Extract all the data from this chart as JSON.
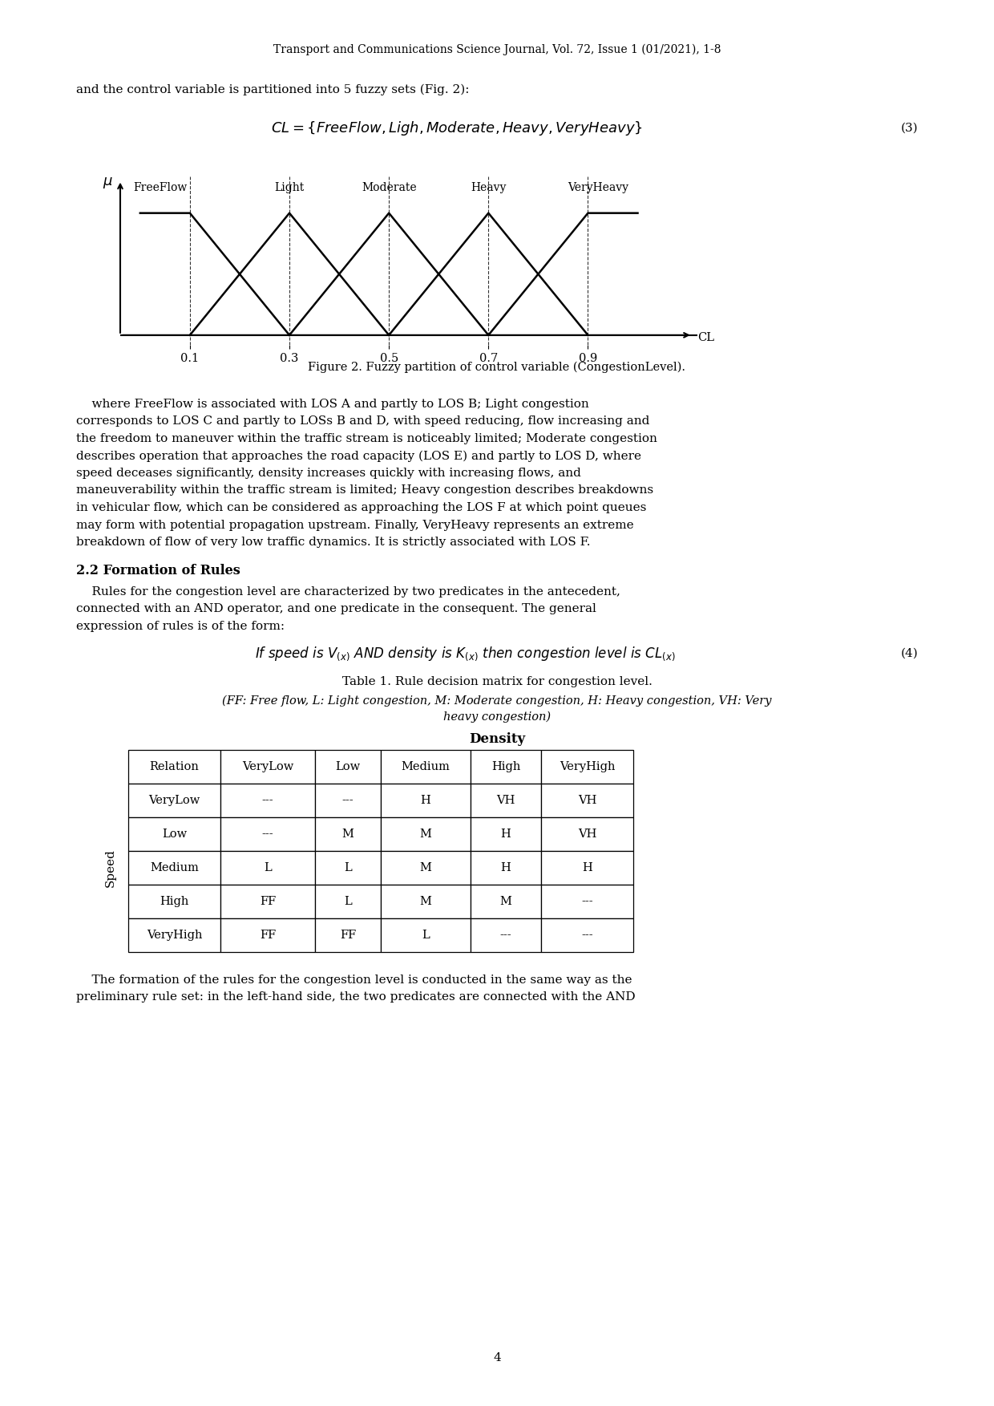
{
  "page_width": 12.4,
  "page_height": 17.53,
  "background_color": "#ffffff",
  "header_text": "Transport and Communications Science Journal, Vol. 72, Issue 1 (01/2021), 1-8",
  "intro_text": "and the control variable is partitioned into 5 fuzzy sets (Fig. 2):",
  "equation3_number": "(3)",
  "fuzzy_xticks": [
    0.1,
    0.3,
    0.5,
    0.7,
    0.9
  ],
  "fuzzy_labels": [
    "FreeFlow",
    "Light",
    "Moderate",
    "Heavy",
    "VeryHeavy"
  ],
  "figure_caption": "Figure 2. Fuzzy partition of control variable (CongestionLevel).",
  "body_text1_lines": [
    "    where FreeFlow is associated with LOS A and partly to LOS B; Light congestion",
    "corresponds to LOS C and partly to LOSs B and D, with speed reducing, flow increasing and",
    "the freedom to maneuver within the traffic stream is noticeably limited; Moderate congestion",
    "describes operation that approaches the road capacity (LOS E) and partly to LOS D, where",
    "speed deceases significantly, density increases quickly with increasing flows, and",
    "maneuverability within the traffic stream is limited; Heavy congestion describes breakdowns",
    "in vehicular flow, which can be considered as approaching the LOS F at which point queues",
    "may form with potential propagation upstream. Finally, VeryHeavy represents an extreme",
    "breakdown of flow of very low traffic dynamics. It is strictly associated with LOS F."
  ],
  "section_title": "2.2 Formation of Rules",
  "body_text2_lines": [
    "    Rules for the congestion level are characterized by two predicates in the antecedent,",
    "connected with an AND operator, and one predicate in the consequent. The general",
    "expression of rules is of the form:"
  ],
  "equation4_number": "(4)",
  "table_title": "Table 1. Rule decision matrix for congestion level.",
  "table_subtitle_lines": [
    "(FF: Free flow, L: Light congestion, M: Moderate congestion, H: Heavy congestion, VH: Very",
    "heavy congestion)"
  ],
  "table_density_label": "Density",
  "table_speed_label": "Speed",
  "table_headers": [
    "Relation",
    "VeryLow",
    "Low",
    "Medium",
    "High",
    "VeryHigh"
  ],
  "table_rows": [
    [
      "VeryLow",
      "---",
      "---",
      "H",
      "VH",
      "VH"
    ],
    [
      "Low",
      "---",
      "M",
      "M",
      "H",
      "VH"
    ],
    [
      "Medium",
      "L",
      "L",
      "M",
      "H",
      "H"
    ],
    [
      "High",
      "FF",
      "L",
      "M",
      "M",
      "---"
    ],
    [
      "VeryHigh",
      "FF",
      "FF",
      "L",
      "---",
      "---"
    ]
  ],
  "footer_lines": [
    "    The formation of the rules for the congestion level is conducted in the same way as the",
    "preliminary rule set: in the left-hand side, the two predicates are connected with the AND"
  ],
  "page_number": "4"
}
